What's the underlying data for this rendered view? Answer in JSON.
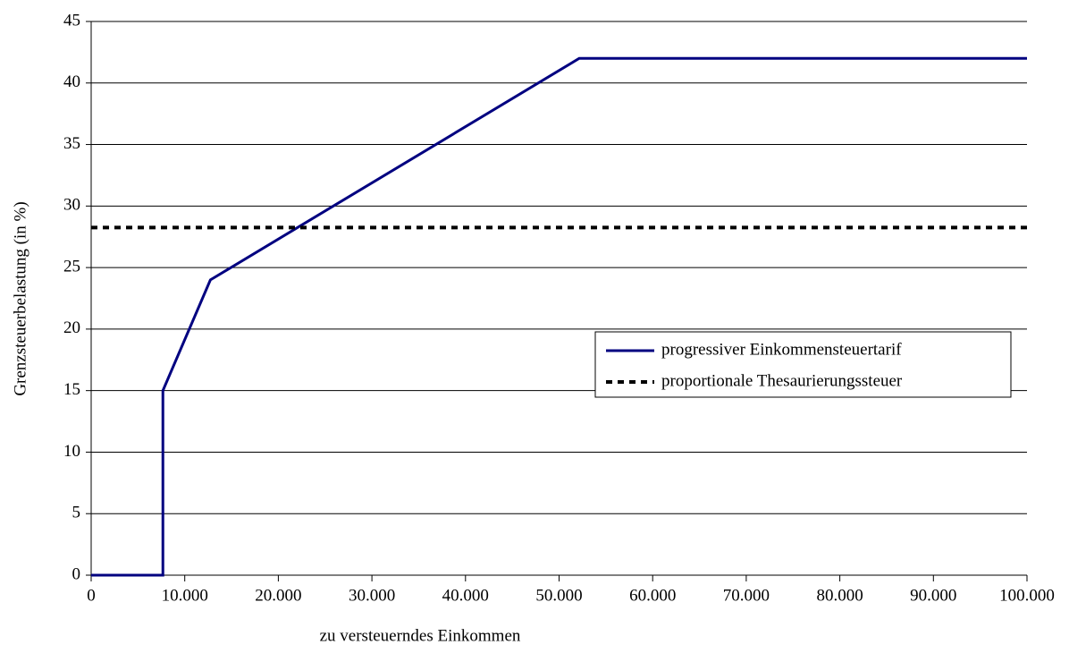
{
  "chart_data": {
    "type": "line",
    "x_label": "zu versteuerndes Einkommen",
    "y_label": "Grenzsteuerbelastung (in %)",
    "xlim": [
      0,
      100000
    ],
    "ylim": [
      0,
      45
    ],
    "xticks": [
      0,
      {
        "value": 10000,
        "label": "10.000"
      },
      {
        "value": 20000,
        "label": "20.000"
      },
      {
        "value": 30000,
        "label": "30.000"
      },
      {
        "value": 40000,
        "label": "40.000"
      },
      {
        "value": 50000,
        "label": "50.000"
      },
      {
        "value": 60000,
        "label": "60.000"
      },
      {
        "value": 70000,
        "label": "70.000"
      },
      {
        "value": 80000,
        "label": "80.000"
      },
      {
        "value": 90000,
        "label": "90.000"
      },
      {
        "value": 100000,
        "label": "100.000"
      }
    ],
    "yticks": [
      0,
      5,
      10,
      15,
      20,
      25,
      30,
      35,
      40,
      45
    ],
    "grid": true,
    "legend": "right",
    "series": [
      {
        "name": "progressiver Einkommensteuertarif",
        "color": "#000080",
        "style": "solid",
        "x": [
          0,
          7664,
          7664,
          12740,
          52152,
          100000
        ],
        "values": [
          0,
          0,
          15,
          24,
          42,
          42
        ]
      },
      {
        "name": "proportionale Thesaurierungssteuer",
        "color": "#000000",
        "style": "dotted",
        "x": [
          0,
          100000
        ],
        "values": [
          28.25,
          28.25
        ]
      }
    ]
  }
}
